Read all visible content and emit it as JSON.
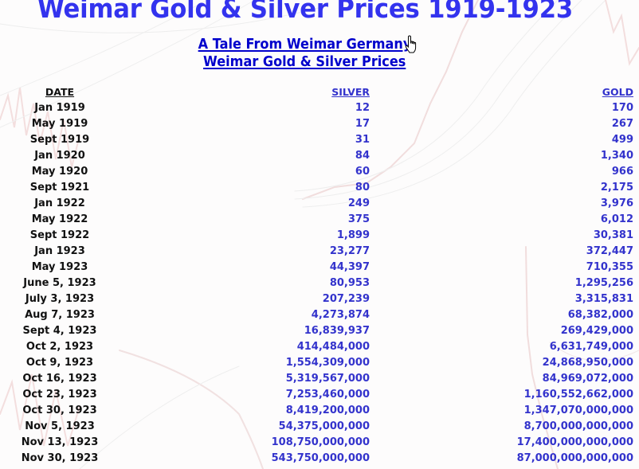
{
  "page": {
    "title": "Weimar Gold & Silver Prices 1919-1923",
    "links": [
      {
        "label": "A Tale From Weimar Germany"
      },
      {
        "label": "Weimar Gold & Silver Prices"
      }
    ],
    "colors": {
      "title": "#3333ee",
      "link": "#0000cc",
      "values": "#3333cc",
      "dates": "#111111"
    }
  },
  "table": {
    "headers": {
      "date": "DATE",
      "silver": "SILVER",
      "gold": "GOLD"
    },
    "rows": [
      {
        "date": "Jan 1919",
        "silver": "12",
        "gold": "170"
      },
      {
        "date": "May 1919",
        "silver": "17",
        "gold": "267"
      },
      {
        "date": "Sept 1919",
        "silver": "31",
        "gold": "499"
      },
      {
        "date": "Jan 1920",
        "silver": "84",
        "gold": "1,340"
      },
      {
        "date": "May 1920",
        "silver": "60",
        "gold": "966"
      },
      {
        "date": "Sept 1921",
        "silver": "80",
        "gold": "2,175"
      },
      {
        "date": "Jan 1922",
        "silver": "249",
        "gold": "3,976"
      },
      {
        "date": "May 1922",
        "silver": "375",
        "gold": "6,012"
      },
      {
        "date": "Sept 1922",
        "silver": "1,899",
        "gold": "30,381"
      },
      {
        "date": "Jan 1923",
        "silver": "23,277",
        "gold": "372,447"
      },
      {
        "date": "May 1923",
        "silver": "44,397",
        "gold": "710,355"
      },
      {
        "date": "June 5, 1923",
        "silver": "80,953",
        "gold": "1,295,256"
      },
      {
        "date": "July 3, 1923",
        "silver": "207,239",
        "gold": "3,315,831"
      },
      {
        "date": "Aug 7, 1923",
        "silver": "4,273,874",
        "gold": "68,382,000"
      },
      {
        "date": "Sept 4, 1923",
        "silver": "16,839,937",
        "gold": "269,429,000"
      },
      {
        "date": "Oct 2, 1923",
        "silver": "414,484,000",
        "gold": "6,631,749,000"
      },
      {
        "date": "Oct 9, 1923",
        "silver": "1,554,309,000",
        "gold": "24,868,950,000"
      },
      {
        "date": "Oct 16, 1923",
        "silver": "5,319,567,000",
        "gold": "84,969,072,000"
      },
      {
        "date": "Oct 23, 1923",
        "silver": "7,253,460,000",
        "gold": "1,160,552,662,000"
      },
      {
        "date": "Oct 30, 1923",
        "silver": "8,419,200,000",
        "gold": "1,347,070,000,000"
      },
      {
        "date": "Nov 5, 1923",
        "silver": "54,375,000,000",
        "gold": "8,700,000,000,000"
      },
      {
        "date": "Nov 13, 1923",
        "silver": "108,750,000,000",
        "gold": "17,400,000,000,000"
      },
      {
        "date": "Nov 30, 1923",
        "silver": "543,750,000,000",
        "gold": "87,000,000,000,000"
      }
    ]
  }
}
